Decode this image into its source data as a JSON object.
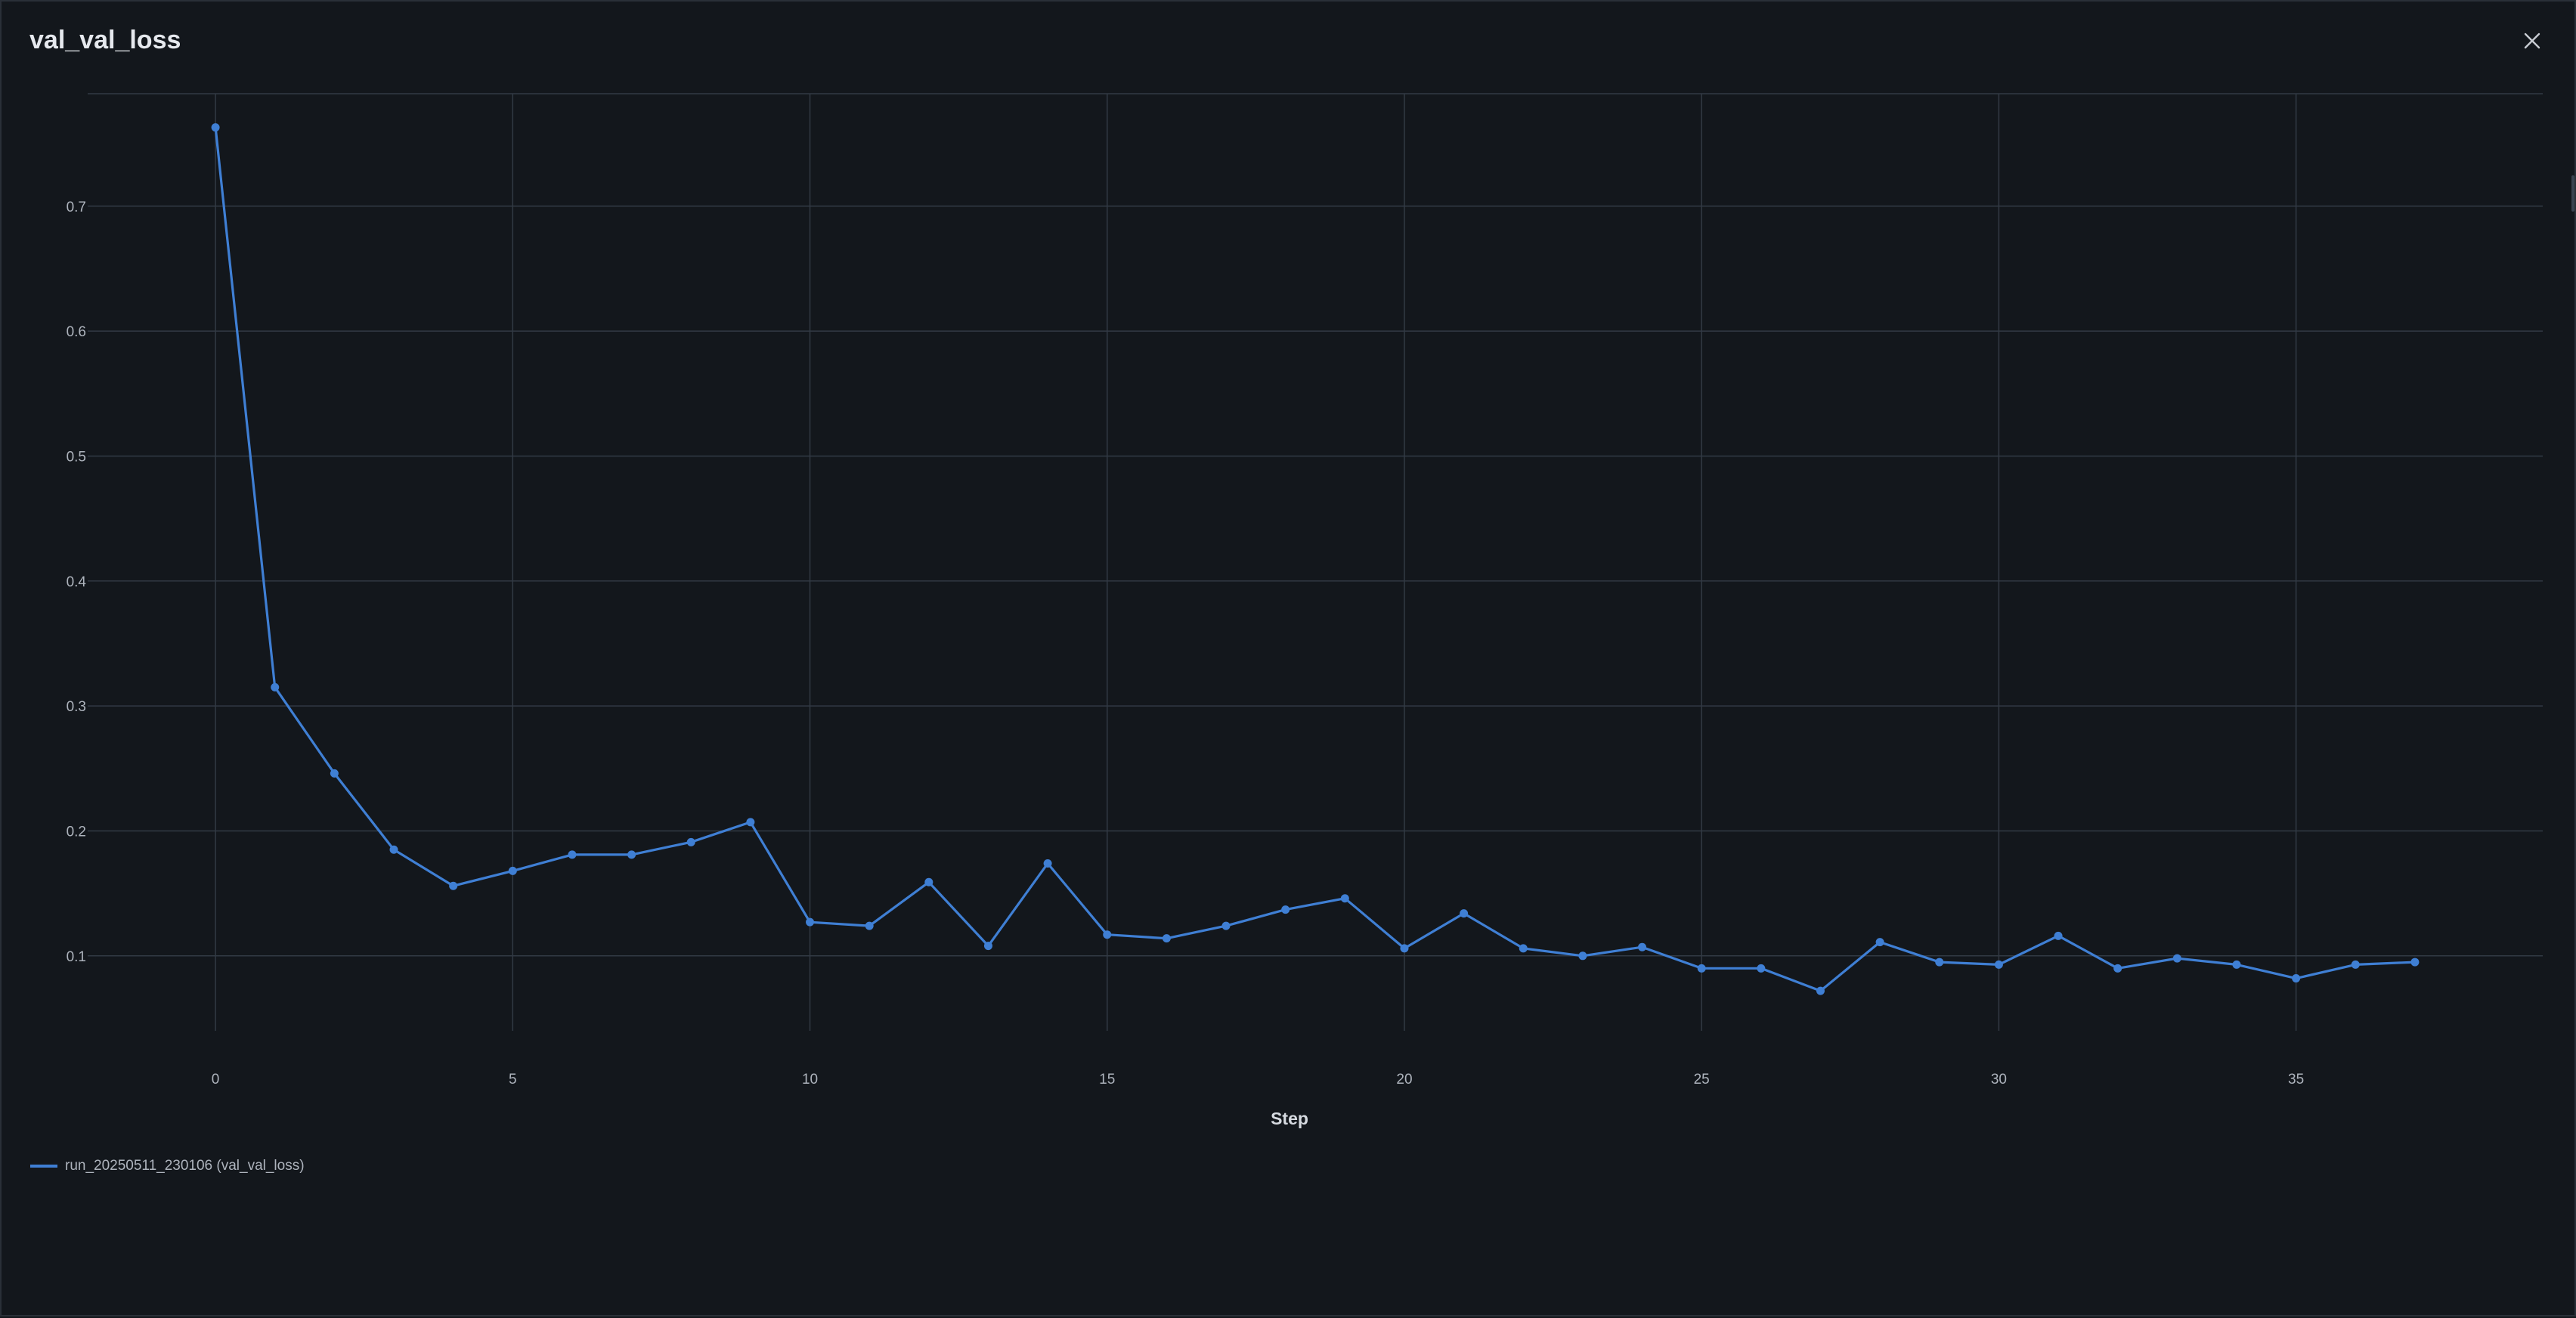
{
  "dialog": {
    "title": "val_val_loss",
    "close_icon": "close-icon"
  },
  "colors": {
    "background": "#13171c",
    "grid": "#323a44",
    "series": "#3f7fd4",
    "tick_text": "#aeb4bd"
  },
  "legend": {
    "label": "run_20250511_230106 (val_val_loss)"
  },
  "chart_data": {
    "type": "line",
    "title": "val_val_loss",
    "xlabel": "Step",
    "ylabel": "",
    "xlim": [
      -2.15,
      39.15
    ],
    "ylim": [
      0.04,
      0.79
    ],
    "x_ticks": [
      0,
      5,
      10,
      15,
      20,
      25,
      30,
      35
    ],
    "y_ticks": [
      0.1,
      0.2,
      0.3,
      0.4,
      0.5,
      0.6,
      0.7
    ],
    "grid": true,
    "legend_position": "bottom-left",
    "series": [
      {
        "name": "run_20250511_230106 (val_val_loss)",
        "color": "#3f7fd4",
        "x": [
          0,
          1,
          2,
          3,
          4,
          5,
          6,
          7,
          8,
          9,
          10,
          11,
          12,
          13,
          14,
          15,
          16,
          17,
          18,
          19,
          20,
          21,
          22,
          23,
          24,
          25,
          26,
          27,
          28,
          29,
          30,
          31,
          32,
          33,
          34,
          35,
          36,
          37
        ],
        "y": [
          0.763,
          0.315,
          0.246,
          0.185,
          0.156,
          0.168,
          0.181,
          0.181,
          0.191,
          0.207,
          0.127,
          0.124,
          0.159,
          0.108,
          0.174,
          0.117,
          0.114,
          0.124,
          0.137,
          0.146,
          0.106,
          0.134,
          0.106,
          0.1,
          0.107,
          0.09,
          0.09,
          0.072,
          0.111,
          0.095,
          0.093,
          0.116,
          0.09,
          0.098,
          0.093,
          0.082,
          0.093,
          0.095
        ]
      }
    ]
  }
}
